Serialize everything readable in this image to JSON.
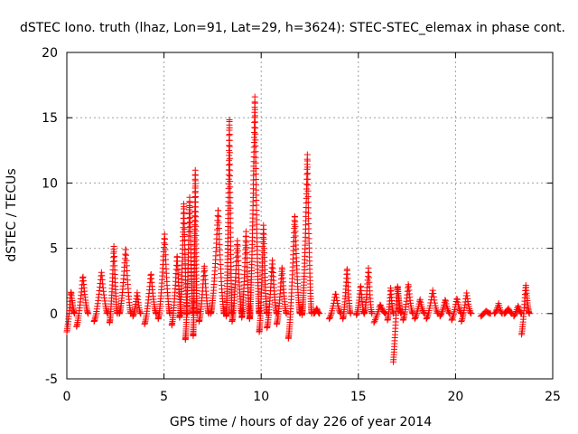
{
  "chart_data": {
    "type": "scatter",
    "title": "dSTEC Iono. truth (lhaz, Lon=91, Lat=29, h=3624): STEC-STEC_elemax in phase cont.",
    "xlabel": "GPS time / hours of day 226 of year 2014",
    "ylabel": "dSTEC  / TECUs",
    "xlim": [
      0,
      25
    ],
    "ylim": [
      -5,
      20
    ],
    "xticks": [
      "0",
      "5",
      "10",
      "15",
      "20",
      "25"
    ],
    "yticks": [
      "-5",
      "0",
      "5",
      "10",
      "15",
      "20"
    ],
    "grid": true,
    "marker": "plus",
    "color": "#ff0000",
    "series": [
      {
        "name": "dSTEC",
        "arcs": [
          {
            "x": [
              0.0,
              0.4
            ],
            "y": [
              -1.4,
              1.7
            ]
          },
          {
            "x": [
              0.5,
              1.1
            ],
            "y": [
              -1.0,
              2.9
            ]
          },
          {
            "x": [
              1.4,
              2.1
            ],
            "y": [
              -0.6,
              3.2
            ]
          },
          {
            "x": [
              2.2,
              2.6
            ],
            "y": [
              -0.7,
              5.2
            ]
          },
          {
            "x": [
              2.7,
              3.3
            ],
            "y": [
              0.0,
              5.1
            ]
          },
          {
            "x": [
              3.4,
              3.8
            ],
            "y": [
              -0.2,
              1.6
            ]
          },
          {
            "x": [
              4.0,
              4.6
            ],
            "y": [
              -0.8,
              3.1
            ]
          },
          {
            "x": [
              4.7,
              5.3
            ],
            "y": [
              -0.4,
              6.1
            ]
          },
          {
            "x": [
              5.4,
              5.9
            ],
            "y": [
              -0.9,
              4.5
            ]
          },
          {
            "x": [
              5.8,
              6.2
            ],
            "y": [
              -0.3,
              8.5
            ]
          },
          {
            "x": [
              6.1,
              6.5
            ],
            "y": [
              -2.0,
              8.9
            ]
          },
          {
            "x": [
              6.5,
              6.7
            ],
            "y": [
              -1.7,
              11.0
            ]
          },
          {
            "x": [
              6.8,
              7.3
            ],
            "y": [
              -0.6,
              3.7
            ]
          },
          {
            "x": [
              7.4,
              8.1
            ],
            "y": [
              0.0,
              8.1
            ]
          },
          {
            "x": [
              8.2,
              8.5
            ],
            "y": [
              -0.2,
              15.0
            ]
          },
          {
            "x": [
              8.5,
              9.0
            ],
            "y": [
              -0.6,
              5.6
            ]
          },
          {
            "x": [
              9.0,
              9.4
            ],
            "y": [
              -0.3,
              6.3
            ]
          },
          {
            "x": [
              9.4,
              9.9
            ],
            "y": [
              -0.4,
              16.6
            ]
          },
          {
            "x": [
              9.9,
              10.3
            ],
            "y": [
              -1.4,
              6.8
            ]
          },
          {
            "x": [
              10.3,
              10.8
            ],
            "y": [
              -1.1,
              4.1
            ]
          },
          {
            "x": [
              10.8,
              11.3
            ],
            "y": [
              -0.8,
              3.6
            ]
          },
          {
            "x": [
              11.4,
              12.0
            ],
            "y": [
              -1.9,
              7.6
            ]
          },
          {
            "x": [
              12.1,
              12.6
            ],
            "y": [
              -0.1,
              12.2
            ]
          },
          {
            "x": [
              12.7,
              13.0
            ],
            "y": [
              0.0,
              0.4
            ]
          },
          {
            "x": [
              13.5,
              14.1
            ],
            "y": [
              -0.4,
              1.6
            ]
          },
          {
            "x": [
              14.2,
              14.6
            ],
            "y": [
              -0.4,
              3.5
            ]
          },
          {
            "x": [
              14.9,
              15.3
            ],
            "y": [
              -0.1,
              2.2
            ]
          },
          {
            "x": [
              15.3,
              15.7
            ],
            "y": [
              0.0,
              3.5
            ]
          },
          {
            "x": [
              15.8,
              16.4
            ],
            "y": [
              -0.7,
              0.7
            ]
          },
          {
            "x": [
              16.5,
              16.8
            ],
            "y": [
              -0.5,
              2.0
            ]
          },
          {
            "x": [
              16.8,
              17.2
            ],
            "y": [
              -3.7,
              2.1
            ]
          },
          {
            "x": [
              17.3,
              17.8
            ],
            "y": [
              -0.5,
              2.3
            ]
          },
          {
            "x": [
              17.9,
              18.4
            ],
            "y": [
              -0.4,
              1.1
            ]
          },
          {
            "x": [
              18.5,
              19.1
            ],
            "y": [
              -0.4,
              1.8
            ]
          },
          {
            "x": [
              19.2,
              19.7
            ],
            "y": [
              -0.2,
              1.1
            ]
          },
          {
            "x": [
              19.8,
              20.3
            ],
            "y": [
              -0.5,
              1.2
            ]
          },
          {
            "x": [
              20.3,
              20.8
            ],
            "y": [
              -0.6,
              1.6
            ]
          },
          {
            "x": [
              21.3,
              21.8
            ],
            "y": [
              -0.2,
              0.2
            ]
          },
          {
            "x": [
              22.0,
              22.4
            ],
            "y": [
              0.0,
              0.8
            ]
          },
          {
            "x": [
              22.5,
              22.9
            ],
            "y": [
              0.0,
              0.4
            ]
          },
          {
            "x": [
              23.0,
              23.4
            ],
            "y": [
              -0.2,
              0.6
            ]
          },
          {
            "x": [
              23.4,
              23.8
            ],
            "y": [
              -1.6,
              2.2
            ]
          }
        ]
      }
    ]
  }
}
